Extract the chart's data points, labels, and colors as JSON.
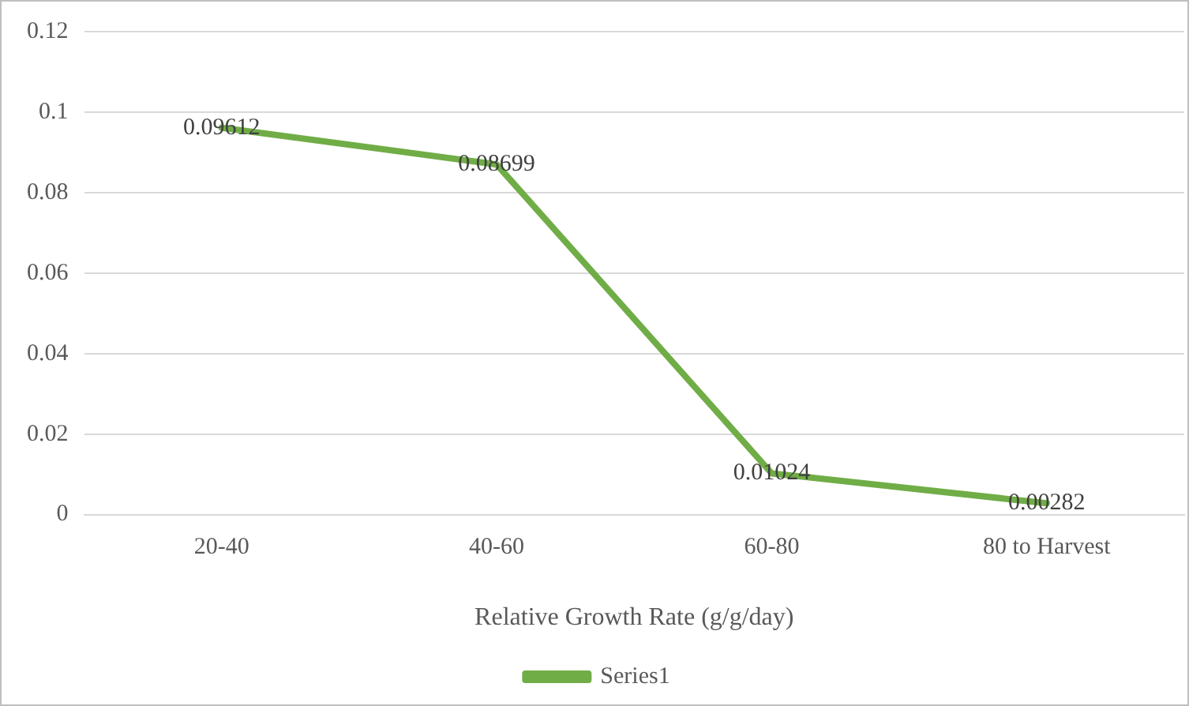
{
  "chart_data": {
    "type": "line",
    "xlabel": "Relative Growth Rate (g/g/day)",
    "categories": [
      "20-40",
      "40-60",
      "60-80",
      "80 to Harvest"
    ],
    "series": [
      {
        "name": "Series1",
        "color": "#70ad47",
        "values": [
          0.09612,
          0.08699,
          0.01024,
          0.00282
        ]
      }
    ],
    "ylim": [
      0,
      0.12
    ],
    "yticks": [
      0,
      0.02,
      0.04,
      0.06,
      0.08,
      0.1,
      0.12
    ],
    "grid": "y",
    "legend": "bottom",
    "marker": "none",
    "line_style": "solid",
    "data_labels": true
  }
}
